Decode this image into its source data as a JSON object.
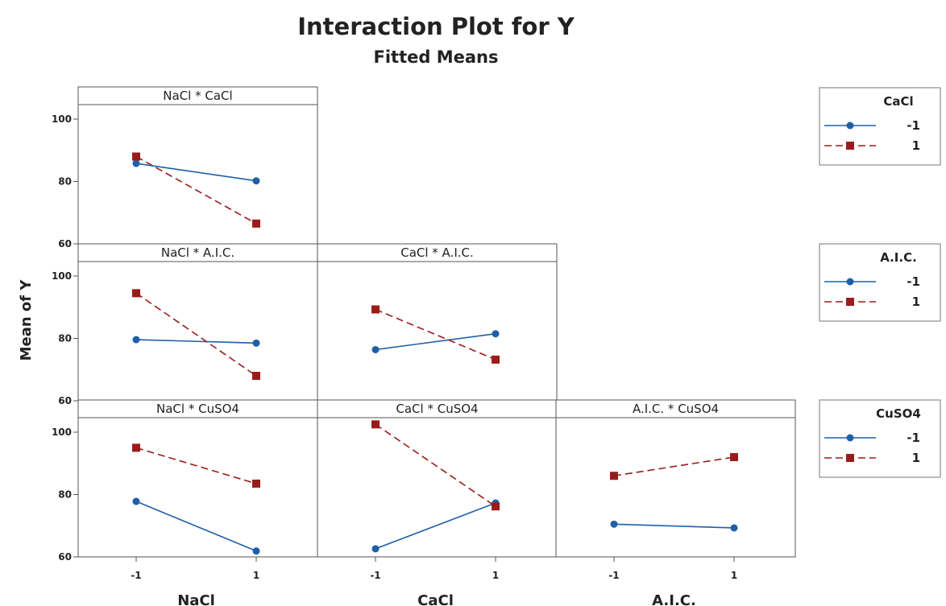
{
  "chart_data": {
    "type": "line",
    "title": "Interaction Plot for Y",
    "subtitle": "Fitted Means",
    "ylabel": "Mean of Y",
    "ylim": [
      60,
      100
    ],
    "yticks": [
      60,
      80,
      100
    ],
    "x_levels": [
      "-1",
      "1"
    ],
    "x_factor_labels": [
      "NaCl",
      "CaCl",
      "A.I.C."
    ],
    "colors": {
      "level_minus1": "#1f5fa8",
      "level_plus1": "#9b1b1b"
    },
    "panels": [
      {
        "strip": "NaCl * CaCl",
        "row": 0,
        "col": 0,
        "x_factor": "NaCl",
        "trace_factor": "CaCl",
        "series": [
          {
            "name": "-1",
            "values": [
              85.8,
              80.2
            ]
          },
          {
            "name": "1",
            "values": [
              88.0,
              66.5
            ]
          }
        ]
      },
      {
        "strip": "NaCl * A.I.C.",
        "row": 1,
        "col": 0,
        "x_factor": "NaCl",
        "trace_factor": "A.I.C.",
        "series": [
          {
            "name": "-1",
            "values": [
              79.6,
              78.5
            ]
          },
          {
            "name": "1",
            "values": [
              94.5,
              68.0
            ]
          }
        ]
      },
      {
        "strip": "CaCl * A.I.C.",
        "row": 1,
        "col": 1,
        "x_factor": "CaCl",
        "trace_factor": "A.I.C.",
        "series": [
          {
            "name": "-1",
            "values": [
              76.4,
              81.5
            ]
          },
          {
            "name": "1",
            "values": [
              89.3,
              73.2
            ]
          }
        ]
      },
      {
        "strip": "NaCl * CuSO4",
        "row": 2,
        "col": 0,
        "x_factor": "NaCl",
        "trace_factor": "CuSO4",
        "series": [
          {
            "name": "-1",
            "values": [
              77.8,
              61.9
            ]
          },
          {
            "name": "1",
            "values": [
              95.0,
              83.5
            ]
          }
        ]
      },
      {
        "strip": "CaCl * CuSO4",
        "row": 2,
        "col": 1,
        "x_factor": "CaCl",
        "trace_factor": "CuSO4",
        "series": [
          {
            "name": "-1",
            "values": [
              62.6,
              77.3
            ]
          },
          {
            "name": "1",
            "values": [
              102.5,
              76.2
            ]
          }
        ]
      },
      {
        "strip": "A.I.C. * CuSO4",
        "row": 2,
        "col": 2,
        "x_factor": "A.I.C.",
        "trace_factor": "CuSO4",
        "series": [
          {
            "name": "-1",
            "values": [
              70.5,
              69.3
            ]
          },
          {
            "name": "1",
            "values": [
              86.0,
              92.0
            ]
          }
        ]
      }
    ],
    "legends": [
      {
        "title": "CaCl",
        "entries": [
          "-1",
          "1"
        ]
      },
      {
        "title": "A.I.C.",
        "entries": [
          "-1",
          "1"
        ]
      },
      {
        "title": "CuSO4",
        "entries": [
          "-1",
          "1"
        ]
      }
    ]
  }
}
